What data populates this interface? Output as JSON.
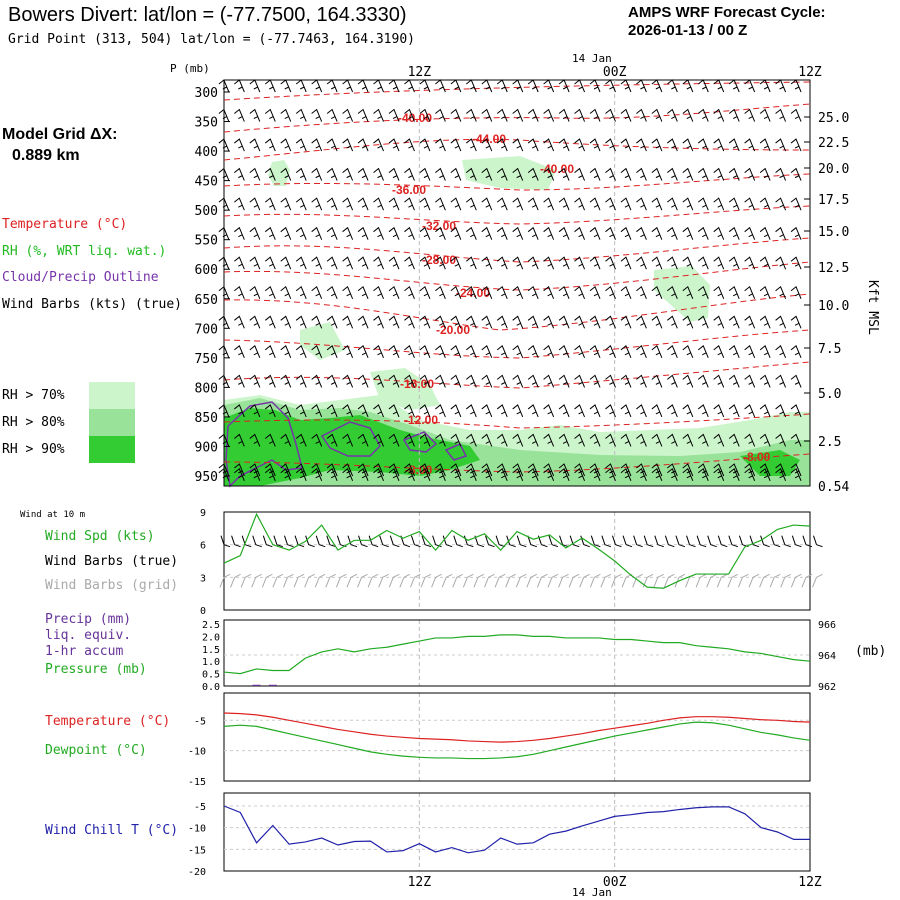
{
  "header": {
    "title": "Bowers Divert:  lat/lon = (-77.7500, 164.3330)",
    "subtitle": "Grid Point (313, 504) lat/lon = (-77.7463, 164.3190)",
    "cycle_label": "AMPS WRF Forecast Cycle:",
    "cycle_value": "2026-01-13 / 00  Z"
  },
  "axis": {
    "p_label": "P (mb)",
    "date_top": "14  Jan",
    "date_bottom": "14  Jan",
    "time_ticks": [
      "12Z",
      "00Z",
      "12Z"
    ],
    "kft_label": "Kft MSL"
  },
  "left_panel": {
    "grid_dx_label": "Model Grid ΔX:",
    "grid_dx_value": "0.889 km",
    "legend": [
      {
        "text": "Temperature (°C)",
        "color": "#dd2222"
      },
      {
        "text": "RH (%, WRT liq. wat.)",
        "color": "#22bb22"
      },
      {
        "text": "Cloud/Precip Outline",
        "color": "#7733aa"
      },
      {
        "text": "Wind Barbs (kts) (true)",
        "color": "#000000"
      }
    ],
    "rh_legend": [
      {
        "text": "RH > 70%",
        "color": "#ccf5cc"
      },
      {
        "text": "RH > 80%",
        "color": "#99e299"
      },
      {
        "text": "RH > 90%",
        "color": "#33cc33"
      }
    ]
  },
  "panel2": {
    "small_title": "Wind at 10 m",
    "labels": [
      {
        "text": "Wind Spd (kts)",
        "color": "#22aa22"
      },
      {
        "text": "Wind Barbs (true)",
        "color": "#000000"
      },
      {
        "text": "Wind Barbs (grid)",
        "color": "#aaaaaa"
      }
    ]
  },
  "panel3": {
    "labels": [
      {
        "text": "Precip (mm)",
        "color": "#663399"
      },
      {
        "text": "liq. equiv.",
        "color": "#663399"
      },
      {
        "text": "1-hr accum",
        "color": "#663399"
      },
      {
        "text": "Pressure (mb)",
        "color": "#22aa22"
      }
    ],
    "right_unit": "(mb)"
  },
  "panel4": {
    "labels": [
      {
        "text": "Temperature (°C)",
        "color": "#dd2222"
      },
      {
        "text": "Dewpoint (°C)",
        "color": "#22aa22"
      }
    ]
  },
  "panel5": {
    "labels": [
      {
        "text": "Wind Chill T (°C)",
        "color": "#2222aa"
      }
    ]
  },
  "chart_data": {
    "type": "line",
    "x_hours": [
      0,
      1,
      2,
      3,
      4,
      5,
      6,
      7,
      8,
      9,
      10,
      11,
      12,
      13,
      14,
      15,
      16,
      17,
      18,
      19,
      20,
      21,
      22,
      23,
      24,
      25,
      26,
      27,
      28,
      29,
      30,
      31,
      32,
      33,
      34,
      35,
      36
    ],
    "x_tick_labels": [
      {
        "hour": 12,
        "label": "12Z"
      },
      {
        "hour": 24,
        "label": "00Z"
      },
      {
        "hour": 36,
        "label": "12Z"
      }
    ],
    "profile": {
      "pressure_levels": [
        "300",
        "350",
        "400",
        "450",
        "500",
        "550",
        "600",
        "650",
        "700",
        "750",
        "800",
        "850",
        "900",
        "950"
      ],
      "height_kft": [
        "25.0",
        "22.5",
        "20.0",
        "17.5",
        "15.0",
        "12.5",
        "10.0",
        "7.5",
        "5.0",
        "2.5",
        "0.54"
      ],
      "temperature_labels": [
        "-40.00",
        "-44.00",
        "-40.00",
        "-36.00",
        "-32.00",
        "-28.00",
        "-24.00",
        "-20.00",
        "-16.00",
        "-12.00",
        "-8.00",
        "-8.00"
      ]
    },
    "wind10m": {
      "yticks": [
        "0",
        "3",
        "6",
        "9"
      ],
      "ylim": [
        0,
        9
      ],
      "speed_kts": [
        4.3,
        5,
        8.8,
        6,
        5.5,
        6.3,
        7.8,
        5.5,
        6.4,
        6.4,
        7.3,
        6.6,
        7.2,
        5.5,
        7.3,
        6.4,
        7,
        5.5,
        7.2,
        6.5,
        6.9,
        5.7,
        6.6,
        5.6,
        4.5,
        3.2,
        2.1,
        2,
        2.7,
        3.3,
        3.3,
        3.3,
        5.8,
        6.4,
        7.4,
        7.8,
        7.7
      ]
    },
    "pressure": {
      "yticks_precip": [
        "0.0",
        "0.5",
        "1.0",
        "1.5",
        "2.0",
        "2.5"
      ],
      "ylim_precip": [
        0,
        2.5
      ],
      "yticks_press": [
        "962",
        "964",
        "966"
      ],
      "ylim_press": [
        962,
        966
      ],
      "pressure_mb": [
        962.9,
        962.8,
        963.1,
        963.0,
        963.0,
        963.8,
        964.2,
        964.4,
        964.2,
        964.4,
        964.5,
        964.7,
        964.9,
        965.1,
        965.1,
        965.2,
        965.2,
        965.3,
        965.3,
        965.2,
        965.2,
        965.1,
        965.1,
        965.1,
        965.0,
        965.0,
        964.9,
        964.8,
        964.8,
        964.6,
        964.5,
        964.4,
        964.2,
        964.1,
        963.9,
        963.7,
        963.6
      ],
      "precip_mm": [
        0,
        0,
        0.05,
        0.05,
        0,
        0,
        0,
        0,
        0,
        0,
        0,
        0,
        0,
        0,
        0,
        0,
        0,
        0,
        0,
        0,
        0,
        0,
        0,
        0,
        0,
        0,
        0,
        0,
        0,
        0,
        0,
        0,
        0,
        0,
        0,
        0,
        0
      ]
    },
    "temperature": {
      "yticks": [
        "-15",
        "-10",
        "-5"
      ],
      "ylim": [
        -15,
        -0.5
      ],
      "temp_c": [
        -3.8,
        -3.9,
        -4.1,
        -4.5,
        -5.0,
        -5.5,
        -6.0,
        -6.5,
        -6.9,
        -7.3,
        -7.6,
        -7.8,
        -8.0,
        -8.1,
        -8.2,
        -8.4,
        -8.5,
        -8.6,
        -8.5,
        -8.3,
        -8.0,
        -7.6,
        -7.2,
        -6.7,
        -6.3,
        -5.9,
        -5.5,
        -5.0,
        -4.6,
        -4.4,
        -4.4,
        -4.5,
        -4.7,
        -4.9,
        -5.0,
        -5.2,
        -5.3
      ],
      "dewpoint_c": [
        -6.0,
        -5.8,
        -6.0,
        -6.6,
        -7.2,
        -7.8,
        -8.4,
        -9.0,
        -9.6,
        -10.2,
        -10.6,
        -10.9,
        -11.1,
        -11.2,
        -11.2,
        -11.3,
        -11.3,
        -11.2,
        -11.0,
        -10.6,
        -10.0,
        -9.4,
        -8.8,
        -8.2,
        -7.6,
        -7.1,
        -6.6,
        -6.1,
        -5.6,
        -5.3,
        -5.4,
        -5.8,
        -6.4,
        -7.0,
        -7.4,
        -7.9,
        -8.3
      ]
    },
    "windchill": {
      "yticks": [
        "-20",
        "-15",
        "-10",
        "-5"
      ],
      "ylim": [
        -20,
        -2
      ],
      "windchill_c": [
        -5,
        -6.5,
        -13.5,
        -9.5,
        -13.8,
        -13.3,
        -12.4,
        -14,
        -13.2,
        -13.1,
        -15.6,
        -15.3,
        -13.7,
        -15.6,
        -14.6,
        -15.8,
        -15.2,
        -12.4,
        -13.8,
        -13.5,
        -11.5,
        -10.8,
        -9.6,
        -8.5,
        -7.4,
        -7,
        -6.5,
        -6.3,
        -5.8,
        -5.4,
        -5.2,
        -5.2,
        -6.8,
        -10,
        -11,
        -12.7,
        -12.7
      ]
    }
  }
}
